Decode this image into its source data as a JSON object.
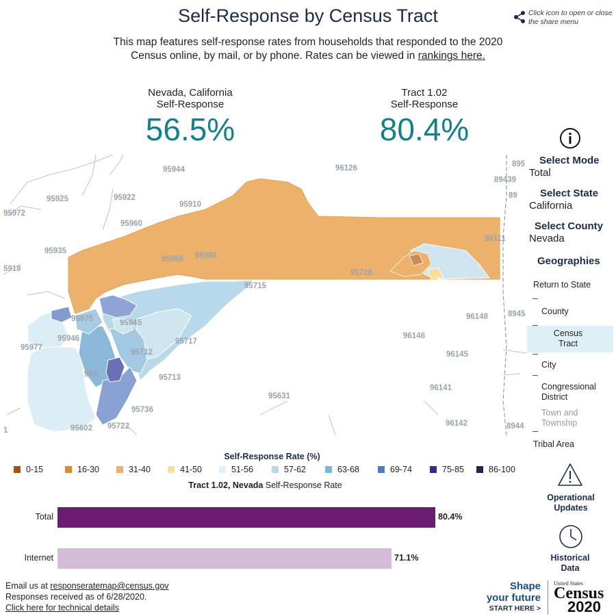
{
  "header": {
    "title": "Self-Response by Census Tract",
    "share_hint": "Click icon to open or close the share menu",
    "intro_text": "This map features self-response rates from households that responded to the 2020 Census online, by mail, or by phone. Rates can be viewed in",
    "rankings_link": "rankings here."
  },
  "stats": {
    "county": {
      "line1": "Nevada, California",
      "line2": "Self-Response",
      "value": "56.5%"
    },
    "tract": {
      "line1": "Tract 1.02",
      "line2": "Self-Response",
      "value": "80.4%"
    }
  },
  "map": {
    "zip_labels": [
      "95944",
      "96126",
      "895",
      "95925",
      "95922",
      "95910",
      "89439",
      "95972",
      "89",
      "95960",
      "96111",
      "95935",
      "95959",
      "95986",
      "5918",
      "95728",
      "95715",
      "96148",
      "8945",
      "95975",
      "95945",
      "95946",
      "96146",
      "95977",
      "95717",
      "95712",
      "96145",
      "95713",
      "96141",
      "95631",
      "95736",
      "95602",
      "95722",
      "96142",
      "8944",
      "1",
      "959"
    ]
  },
  "controls": {
    "select_mode_label": "Select Mode",
    "select_mode_value": "Total",
    "select_state_label": "Select State",
    "select_state_value": "California",
    "select_county_label": "Select County",
    "select_county_value": "Nevada",
    "geographies_label": "Geographies",
    "geographies": [
      {
        "label": "Return to State"
      },
      {
        "label": "County"
      },
      {
        "label": "Census Tract"
      },
      {
        "label": "City"
      },
      {
        "label": "Congressional District"
      },
      {
        "label": "Town and Township"
      },
      {
        "label": "Tribal Area"
      }
    ]
  },
  "legend": {
    "title": "Self-Response Rate (%)",
    "items": [
      {
        "label": "0-15",
        "color": "#a0520f"
      },
      {
        "label": "16-30",
        "color": "#de8a2c"
      },
      {
        "label": "31-40",
        "color": "#ecb16a"
      },
      {
        "label": "41-50",
        "color": "#f9df9f"
      },
      {
        "label": "51-56",
        "color": "#e1f1f8"
      },
      {
        "label": "57-62",
        "color": "#b7d9ea"
      },
      {
        "label": "63-68",
        "color": "#7fb4d8"
      },
      {
        "label": "69-74",
        "color": "#4f7cc0"
      },
      {
        "label": "75-85",
        "color": "#2c2e8c"
      },
      {
        "label": "86-100",
        "color": "#1a2a4a"
      }
    ]
  },
  "rate_chart": {
    "title_bold": "Tract 1.02, Nevada",
    "title_rest": "Self-Response Rate",
    "bars": [
      {
        "label": "Total",
        "value": 80.4,
        "display": "80.4%",
        "color": "#6a1c70"
      },
      {
        "label": "Internet",
        "value": 71.1,
        "display": "71.1%",
        "color": "#d4bcd8"
      }
    ]
  },
  "side_buttons": {
    "operational": "Operational Updates",
    "historical": "Historical Data"
  },
  "footer": {
    "email_prefix": "Email us at",
    "email": "responseratemap@census.gov",
    "responses_as_of": "Responses received as of 6/28/2020.",
    "tech_link": "Click here for technical details"
  },
  "branding": {
    "shape_line1": "Shape",
    "shape_line2": "your future",
    "start_here": "START HERE >",
    "united_states": "United States",
    "census": "Census",
    "year": "2020"
  }
}
